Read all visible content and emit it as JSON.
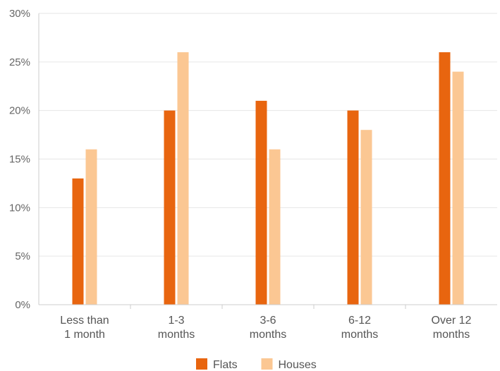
{
  "chart_data": {
    "type": "bar",
    "title": "",
    "xlabel": "",
    "ylabel": "",
    "categories": [
      [
        "Less than",
        "1 month"
      ],
      [
        "1-3",
        "months"
      ],
      [
        "3-6",
        "months"
      ],
      [
        "6-12",
        "months"
      ],
      [
        "Over 12",
        "months"
      ]
    ],
    "series": [
      {
        "name": "Flats",
        "color": "#e8650f",
        "values": [
          13,
          20,
          21,
          20,
          26
        ]
      },
      {
        "name": "Houses",
        "color": "#fbc793",
        "values": [
          16,
          26,
          16,
          18,
          24
        ]
      }
    ],
    "ylim": [
      0,
      30
    ],
    "yticks": [
      0,
      5,
      10,
      15,
      20,
      25,
      30
    ],
    "ytick_suffix": "%",
    "grid": true,
    "legend_position": "bottom-center"
  }
}
